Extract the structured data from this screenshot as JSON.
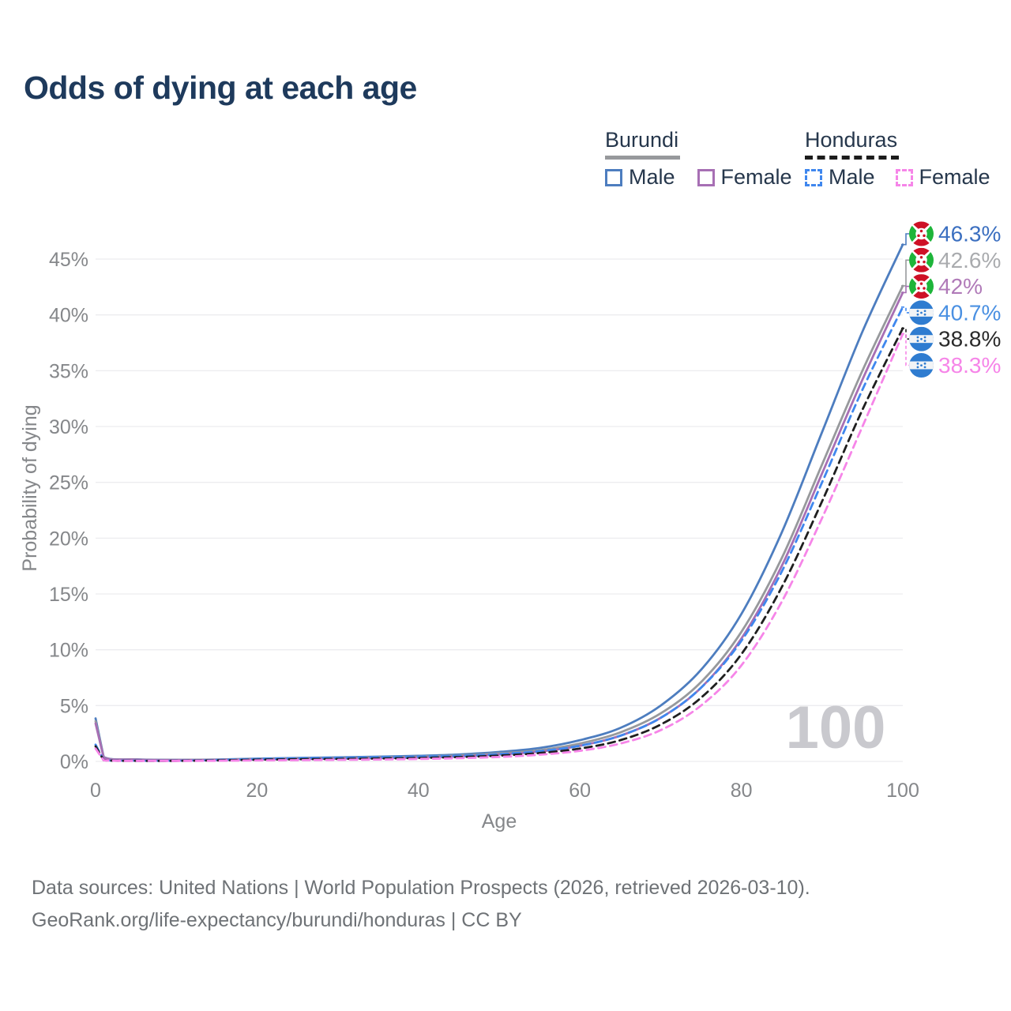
{
  "title": "Odds of dying at each age",
  "legend": {
    "burundi": {
      "label": "Burundi",
      "male": "Male",
      "female": "Female",
      "line_style": "solid",
      "underline_color": "#97999c"
    },
    "honduras": {
      "label": "Honduras",
      "male": "Male",
      "female": "Female",
      "line_style": "dashed",
      "underline_color": "#1c1c1c"
    }
  },
  "watermark_age": "100",
  "footer": {
    "line1": "Data sources: United Nations | World Population Prospects (2026, retrieved 2026-03-10).",
    "line2": "GeoRank.org/life-expectancy/burundi/honduras | CC BY"
  },
  "colors": {
    "title": "#1e3a5c",
    "axis_text": "#85878a",
    "gridline": "#ececef",
    "watermark": "#c9c9ce",
    "footer_text": "#6e7276",
    "legend_text": "#26374c"
  },
  "chart_data": {
    "type": "line",
    "title": "Odds of dying at each age",
    "xlabel": "Age",
    "ylabel": "Probability of dying",
    "xlim": [
      0,
      100
    ],
    "ylim": [
      0,
      46.5
    ],
    "grid": true,
    "legend_position": "top-right",
    "xticks": [
      0,
      20,
      40,
      60,
      80,
      100
    ],
    "yticks": [
      "0%",
      "5%",
      "10%",
      "15%",
      "20%",
      "25%",
      "30%",
      "35%",
      "40%",
      "45%"
    ],
    "ytick_values": [
      0,
      5,
      10,
      15,
      20,
      25,
      30,
      35,
      40,
      45
    ],
    "x": [
      0,
      1,
      5,
      10,
      15,
      20,
      25,
      30,
      35,
      40,
      45,
      50,
      55,
      60,
      65,
      70,
      75,
      80,
      85,
      90,
      95,
      100
    ],
    "series": [
      {
        "name": "Burundi male",
        "country": "Burundi",
        "sex": "Male",
        "color": "#4d7dbf",
        "dash": false,
        "flag": "burundi",
        "end_label": "46.3%",
        "end_label_color": "#3b6fc0",
        "values": [
          3.85,
          0.4,
          0.18,
          0.14,
          0.17,
          0.25,
          0.31,
          0.36,
          0.42,
          0.5,
          0.62,
          0.85,
          1.2,
          1.9,
          3.0,
          5.0,
          8.2,
          13.2,
          20.5,
          29.5,
          38.5,
          46.3
        ]
      },
      {
        "name": "Burundi both sexes",
        "country": "Burundi",
        "sex": "Both",
        "color": "#97999c",
        "dash": false,
        "flag": "burundi",
        "end_label": "42.6%",
        "end_label_color": "#a9abae",
        "values": [
          3.6,
          0.37,
          0.17,
          0.13,
          0.15,
          0.21,
          0.26,
          0.3,
          0.35,
          0.42,
          0.53,
          0.72,
          1.0,
          1.6,
          2.6,
          4.3,
          7.1,
          11.6,
          18.2,
          26.6,
          35.0,
          42.6
        ]
      },
      {
        "name": "Burundi female",
        "country": "Burundi",
        "sex": "Female",
        "color": "#a76fb4",
        "dash": false,
        "flag": "burundi",
        "end_label": "42%",
        "end_label_color": "#b07ab8",
        "values": [
          3.4,
          0.35,
          0.16,
          0.12,
          0.13,
          0.17,
          0.21,
          0.25,
          0.29,
          0.35,
          0.45,
          0.62,
          0.88,
          1.4,
          2.3,
          3.9,
          6.6,
          11.0,
          17.5,
          25.8,
          34.2,
          42.0
        ]
      },
      {
        "name": "Honduras male",
        "country": "Honduras",
        "sex": "Male",
        "color": "#3f87ee",
        "dash": true,
        "flag": "honduras",
        "end_label": "40.7%",
        "end_label_color": "#4a90e2",
        "values": [
          1.5,
          0.12,
          0.06,
          0.06,
          0.12,
          0.22,
          0.28,
          0.32,
          0.36,
          0.42,
          0.5,
          0.65,
          0.92,
          1.4,
          2.3,
          3.9,
          6.6,
          10.8,
          17.0,
          25.0,
          33.3,
          40.7
        ]
      },
      {
        "name": "Honduras both sexes",
        "country": "Honduras",
        "sex": "Both",
        "color": "#1f1f1f",
        "dash": true,
        "flag": "honduras",
        "end_label": "38.8%",
        "end_label_color": "#2a2a2a",
        "values": [
          1.35,
          0.11,
          0.05,
          0.05,
          0.09,
          0.15,
          0.19,
          0.22,
          0.26,
          0.31,
          0.39,
          0.52,
          0.75,
          1.15,
          1.9,
          3.3,
          5.7,
          9.6,
          15.6,
          23.3,
          31.5,
          38.8
        ]
      },
      {
        "name": "Honduras female",
        "country": "Honduras",
        "sex": "Female",
        "color": "#f685e8",
        "dash": true,
        "flag": "honduras",
        "end_label": "38.3%",
        "end_label_color": "#f685e8",
        "values": [
          1.15,
          0.1,
          0.04,
          0.04,
          0.06,
          0.09,
          0.11,
          0.14,
          0.17,
          0.22,
          0.29,
          0.4,
          0.6,
          0.95,
          1.6,
          2.8,
          5.0,
          8.6,
          14.3,
          21.8,
          30.0,
          38.3
        ]
      }
    ]
  }
}
